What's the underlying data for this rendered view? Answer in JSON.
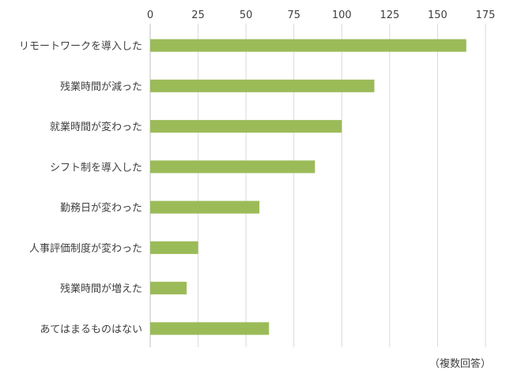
{
  "chart_data": {
    "type": "bar",
    "orientation": "horizontal",
    "categories": [
      "リモートワークを導入した",
      "残業時間が減った",
      "就業時間が変わった",
      "シフト制を導入した",
      "勤務日が変わった",
      "人事評価制度が変わった",
      "残業時間が増えた",
      "あてはまるものはない"
    ],
    "values": [
      165,
      117,
      100,
      86,
      57,
      25,
      19,
      62
    ],
    "xlim": [
      0,
      175
    ],
    "x_ticks": [
      0,
      25,
      50,
      75,
      100,
      125,
      150,
      175
    ],
    "x_axis_position": "top",
    "grid": "vertical",
    "bar_color": "#9bbb59",
    "note": "（複数回答）"
  }
}
